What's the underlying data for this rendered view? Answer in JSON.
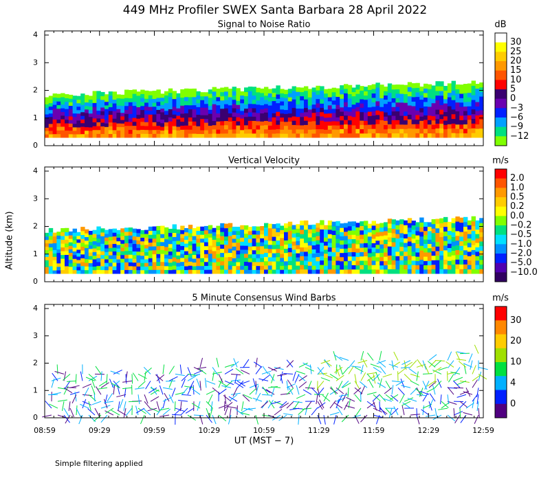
{
  "title": "449 MHz Profiler SWEX Santa Barbara 28 April 2022",
  "y_label": "Altitude (km)",
  "x_label": "UT  (MST − 7)",
  "footnote": "Simple filtering applied",
  "x_ticks": [
    "08:59",
    "09:29",
    "09:59",
    "10:29",
    "10:59",
    "11:29",
    "11:59",
    "12:29",
    "12:59"
  ],
  "y_ticks": [
    0,
    1,
    2,
    3,
    4
  ],
  "panels": [
    {
      "title": "Signal to Noise Ratio",
      "unit": "dB",
      "colorbar_labels": [
        "30",
        "25",
        "20",
        "15",
        "10",
        "5",
        "0",
        "−3",
        "−6",
        "−9",
        "−12"
      ],
      "colors": [
        "#ffffff",
        "#ffff00",
        "#ffcc00",
        "#ff9900",
        "#ff5500",
        "#ff0000",
        "#3a0070",
        "#6a00b0",
        "#0020ff",
        "#00a0ff",
        "#00e080",
        "#80ff00"
      ]
    },
    {
      "title": "Vertical Velocity",
      "unit": "m/s",
      "colorbar_labels": [
        "2.0",
        "1.0",
        "0.5",
        "0.2",
        "0.0",
        "−0.2",
        "−0.5",
        "−1.0",
        "−2.0",
        "−5.0",
        "−10.0"
      ],
      "colors": [
        "#ff0000",
        "#ff5500",
        "#ff9900",
        "#ffcc00",
        "#ffff00",
        "#80ff00",
        "#00e080",
        "#00e0ff",
        "#0090ff",
        "#0020ff",
        "#5000b0",
        "#300060"
      ]
    },
    {
      "title": "5 Minute Consensus Wind Barbs",
      "unit": "m/s",
      "colorbar_labels": [
        "30",
        "20",
        "10",
        "4",
        "0"
      ],
      "colors": [
        "#ff0000",
        "#ff8800",
        "#ffcc00",
        "#a0e000",
        "#00e040",
        "#00b0ff",
        "#0020ff",
        "#500080"
      ]
    }
  ]
}
